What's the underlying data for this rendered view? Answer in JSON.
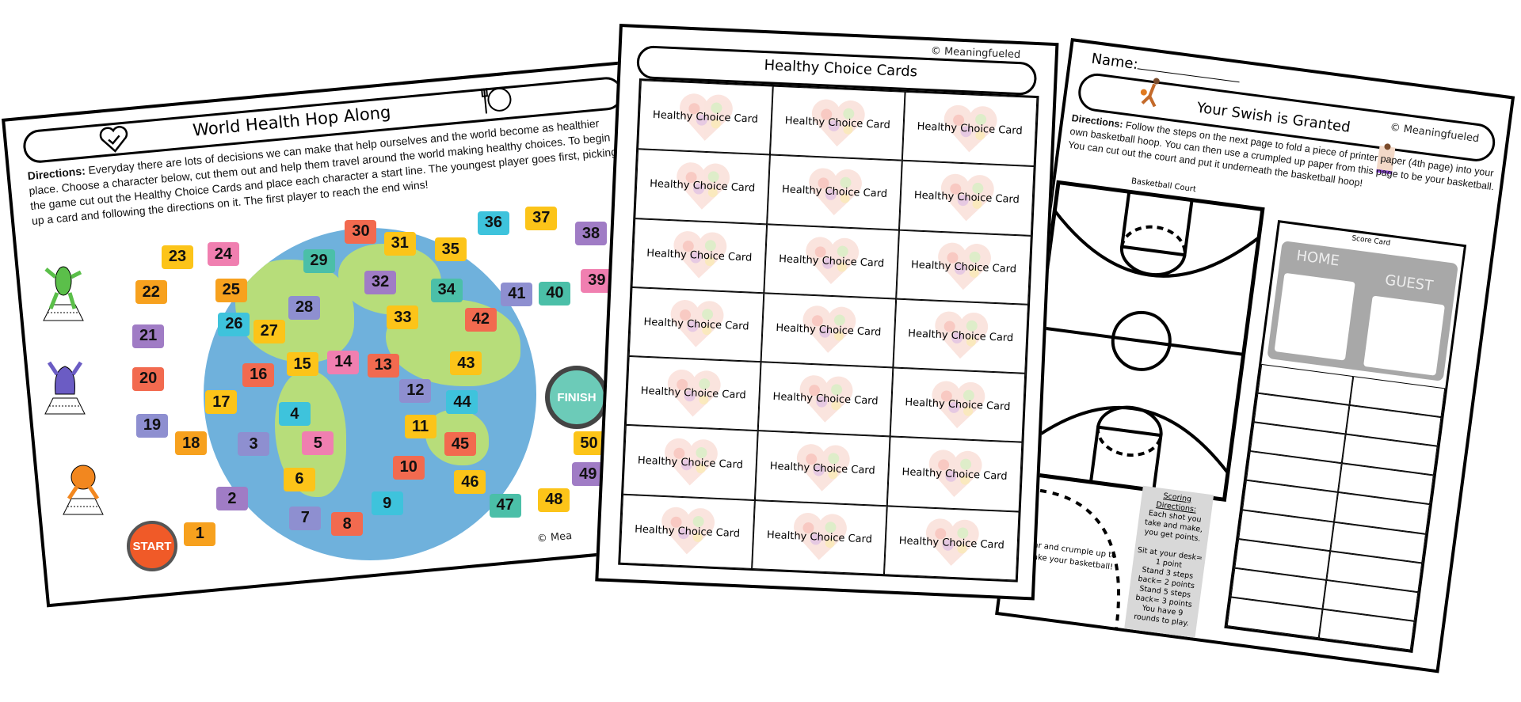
{
  "board_page": {
    "title": "World Health Hop Along",
    "directions_label": "Directions:",
    "directions": "Everyday there are lots of decisions we can make that help ourselves and  the world become as healthier place. Choose a character below, cut them out and help them travel around the world making healthy choices. To begin the game cut out the Healthy Choice Cards and place each character a start line. The youngest player goes first, picking up a card and following the directions on it. The first player to reach the end wins!",
    "start_label": "START",
    "finish_label": "FINISH",
    "copyright": "© Mea",
    "tiles": [
      1,
      2,
      3,
      4,
      5,
      6,
      7,
      8,
      9,
      10,
      11,
      12,
      13,
      14,
      15,
      16,
      17,
      18,
      19,
      20,
      21,
      22,
      23,
      24,
      25,
      26,
      27,
      28,
      29,
      30,
      31,
      32,
      33,
      34,
      35,
      36,
      37,
      38,
      39,
      40,
      41,
      42,
      43,
      44,
      45,
      46,
      47,
      48,
      49,
      50
    ],
    "tile_colors": [
      "#f7a11e",
      "#a07cc5",
      "#8e8fd0",
      "#3ec3dc",
      "#f07fb0",
      "#fcc419",
      "#8e8fd0",
      "#f26a4f",
      "#3ec3dc",
      "#f26a4f",
      "#fcc419",
      "#8e8fd0",
      "#f26a4f",
      "#f07fb0",
      "#fcc419",
      "#f26a4f",
      "#fcc419",
      "#f7a11e",
      "#8e8fd0",
      "#f26a4f",
      "#a07cc5",
      "#f7a11e",
      "#fcc419",
      "#f07fb0",
      "#f7a11e",
      "#3ec3dc",
      "#fcc419",
      "#8e8fd0",
      "#4bbfa8",
      "#f26a4f",
      "#fcc419",
      "#a07cc5",
      "#fcc419",
      "#4bbfa8",
      "#fcc419",
      "#3ec3dc",
      "#fcc419",
      "#a07cc5",
      "#f07fb0",
      "#4bbfa8",
      "#8e8fd0",
      "#f26a4f",
      "#fcc419",
      "#3ec3dc",
      "#f26a4f",
      "#fcc419",
      "#4bbfa8",
      "#fcc419",
      "#a07cc5",
      "#fcc419"
    ],
    "icons": [
      "heart-check-icon",
      "plate-utensils-icon"
    ]
  },
  "cards_page": {
    "copyright": "© Meaningfueled",
    "title": "Healthy Choice Cards",
    "card_label": "Healthy Choice Card",
    "card_count": 21
  },
  "swish_page": {
    "name_label": "Name:",
    "title": "Your Swish is Granted",
    "copyright": "© Meaningfueled",
    "directions_label": "Directions:",
    "directions": "Follow the steps on the next page to fold a piece of printer paper (4th page) into your own basketball hoop. You can then use a crumpled up paper from this page to be your basketball. You can cut out the court and put it underneath the basketball hoop!",
    "court_label": "Basketball Court",
    "score_label": "Score Card",
    "home_label": "HOME",
    "guest_label": "GUEST",
    "tear_text": "Tear and crumple up to make your basketball!",
    "scoring_title": "Scoring Directions:",
    "scoring_lines": [
      "Each shot you take and make, you get points.",
      "Sit at your desk= 1 point",
      "Stand 3 steps back= 2 points",
      "Stand 5 steps back= 3 points",
      "You have 9 rounds to play."
    ]
  }
}
